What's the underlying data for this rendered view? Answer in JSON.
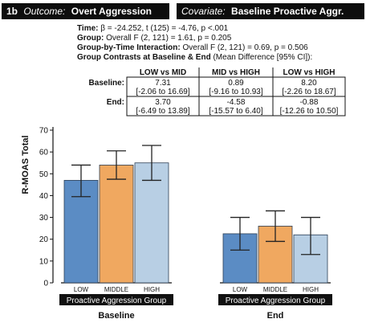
{
  "panel": {
    "label": "1b",
    "outcome_prefix": "Outcome:",
    "outcome_value": "Overt Aggression",
    "covariate_prefix": "Covariate:",
    "covariate_value": "Baseline Proactive Aggr."
  },
  "stats": [
    {
      "bold": "Time:",
      "text": " β = -24.252, t (125) = -4.76, p <.001"
    },
    {
      "bold": "Group:",
      "text": " Overall F (2, 121) = 1.61, p = 0.205"
    },
    {
      "bold": "Group-by-Time Interaction:",
      "text": " Overall F (2, 121) = 0.69, p = 0.506"
    },
    {
      "bold": "Group Contrasts at Baseline & End",
      "text": " (Mean Difference [95% CI]):"
    }
  ],
  "contrast_table": {
    "columns": [
      "LOW vs MID",
      "MID vs HIGH",
      "LOW vs HIGH"
    ],
    "rows": [
      {
        "label": "Baseline:",
        "cells": [
          {
            "mean": "7.31",
            "ci": "[-2.06 to 16.69]"
          },
          {
            "mean": "0.89",
            "ci": "[-9.16 to 10.93]"
          },
          {
            "mean": "8.20",
            "ci": "[-2.26 to 18.67]"
          }
        ]
      },
      {
        "label": "End:",
        "cells": [
          {
            "mean": "3.70",
            "ci": "[-6.49 to 13.89]"
          },
          {
            "mean": "-4.58",
            "ci": "[-15.57 to 6.40]"
          },
          {
            "mean": "-0.88",
            "ci": "[-12.26 to 10.50]"
          }
        ]
      }
    ]
  },
  "chart_data": {
    "type": "bar",
    "ylabel": "R-MOAS Total",
    "ylim": [
      0,
      70
    ],
    "yticks": [
      0,
      10,
      20,
      30,
      40,
      50,
      60,
      70
    ],
    "group_axis_label": "Proactive Aggression Group",
    "categories": [
      "LOW",
      "MIDDLE",
      "HIGH"
    ],
    "colors": [
      "#5b8cc4",
      "#f0a860",
      "#b8cfe4"
    ],
    "panels": [
      {
        "time": "Baseline",
        "values": [
          47,
          54,
          55
        ],
        "err_low": [
          39.5,
          47.5,
          47
        ],
        "err_high": [
          54,
          60.5,
          63
        ]
      },
      {
        "time": "End",
        "values": [
          22.5,
          26,
          22
        ],
        "err_low": [
          15,
          19,
          13
        ],
        "err_high": [
          30,
          33,
          30
        ]
      }
    ]
  }
}
